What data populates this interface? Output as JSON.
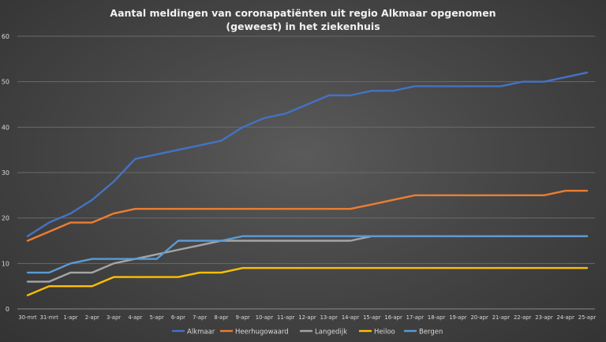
{
  "chart_data": {
    "type": "line",
    "title": "Aantal meldingen van coronapatiënten uit regio Alkmaar opgenomen (geweest) in het ziekenhuis",
    "title_lines": [
      "Aantal meldingen van coronapatiënten uit regio Alkmaar opgenomen",
      "(geweest) in het ziekenhuis"
    ],
    "xlabel": "",
    "ylabel": "",
    "ylim": [
      0,
      60
    ],
    "yticks": [
      0,
      10,
      20,
      30,
      40,
      50,
      60
    ],
    "grid": true,
    "legend_position": "bottom",
    "x": [
      "30-mrt",
      "31-mrt",
      "1-apr",
      "2-apr",
      "3-apr",
      "4-apr",
      "5-apr",
      "6-apr",
      "7-apr",
      "8-apr",
      "9-apr",
      "10-apr",
      "11-apr",
      "12-apr",
      "13-apr",
      "14-apr",
      "15-apr",
      "16-apr",
      "17-apr",
      "18-apr",
      "19-apr",
      "20-apr",
      "21-apr",
      "22-apr",
      "23-apr",
      "24-apr",
      "25-apr"
    ],
    "series": [
      {
        "name": "Alkmaar",
        "color": "#4472c4",
        "values": [
          16,
          19,
          21,
          24,
          28,
          33,
          34,
          35,
          36,
          37,
          40,
          42,
          43,
          45,
          47,
          47,
          48,
          48,
          49,
          49,
          49,
          49,
          49,
          50,
          50,
          51,
          52
        ]
      },
      {
        "name": "Heerhugowaard",
        "color": "#ed7d31",
        "values": [
          15,
          17,
          19,
          19,
          21,
          22,
          22,
          22,
          22,
          22,
          22,
          22,
          22,
          22,
          22,
          22,
          23,
          24,
          25,
          25,
          25,
          25,
          25,
          25,
          25,
          26,
          26
        ]
      },
      {
        "name": "Langedijk",
        "color": "#a5a5a5",
        "values": [
          6,
          6,
          8,
          8,
          10,
          11,
          12,
          13,
          14,
          15,
          15,
          15,
          15,
          15,
          15,
          15,
          16,
          16,
          16,
          16,
          16,
          16,
          16,
          16,
          16,
          16,
          16
        ]
      },
      {
        "name": "Heiloo",
        "color": "#ffc000",
        "values": [
          3,
          5,
          5,
          5,
          7,
          7,
          7,
          7,
          8,
          8,
          9,
          9,
          9,
          9,
          9,
          9,
          9,
          9,
          9,
          9,
          9,
          9,
          9,
          9,
          9,
          9,
          9
        ]
      },
      {
        "name": "Bergen",
        "color": "#5b9bd5",
        "values": [
          8,
          8,
          10,
          11,
          11,
          11,
          11,
          15,
          15,
          15,
          16,
          16,
          16,
          16,
          16,
          16,
          16,
          16,
          16,
          16,
          16,
          16,
          16,
          16,
          16,
          16,
          16
        ]
      }
    ]
  }
}
